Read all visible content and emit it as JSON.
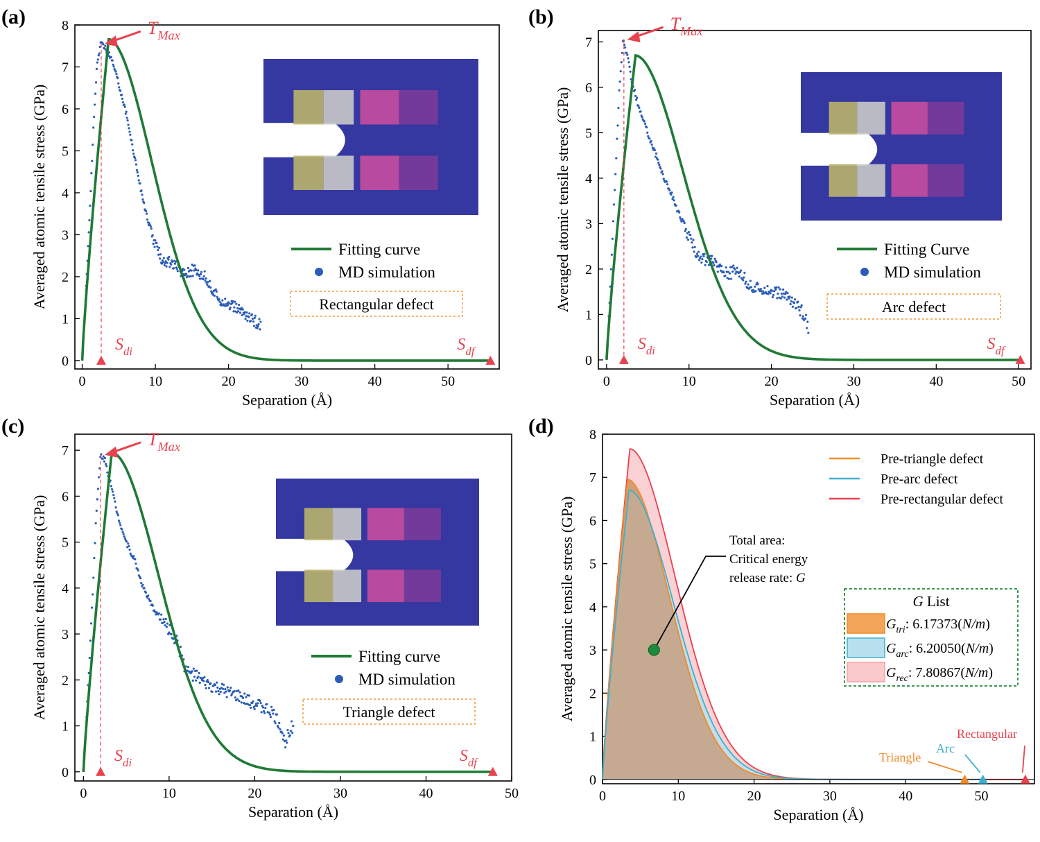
{
  "figure": {
    "colors": {
      "fit": "#1f7a35",
      "md": "#2a5cb8",
      "marker": "#e8424f",
      "tri": "#f08a2a",
      "arc": "#3fb0cc",
      "rec": "#e8424f",
      "frame": "#000000",
      "note": "#f29a3a",
      "glist": "#1f8a3a",
      "insetBlue": "#3438a0",
      "insetYellow": "#b9b46a",
      "insetGray": "#c9c9c9",
      "insetPink": "#c64c9e",
      "insetPurple": "#7a3a9a"
    }
  },
  "chart_data": [
    {
      "panel": "(a)",
      "type": "line",
      "xlabel": "Separation (Å)",
      "ylabel": "Averaged atomic tensile stress (GPa)",
      "xlim": [
        -1,
        57
      ],
      "ylim": [
        -0.2,
        8
      ],
      "xticks": [
        0,
        10,
        20,
        30,
        40,
        50
      ],
      "yticks": [
        0,
        1,
        2,
        3,
        4,
        5,
        6,
        7,
        8
      ],
      "legend": [
        "Fitting curve",
        "MD simulation"
      ],
      "note": "Rectangular defect",
      "fit": {
        "peak_x": 3.6,
        "peak_y": 7.66,
        "end_x": 55.8,
        "rise_power": 0.85,
        "decay_k": 8.7,
        "decay_p": 1.9
      },
      "md": {
        "points": [
          [
            0,
            0
          ],
          [
            0.5,
            1.6
          ],
          [
            1,
            3.4
          ],
          [
            1.5,
            5.4
          ],
          [
            2,
            7.0
          ],
          [
            2.5,
            7.55
          ],
          [
            3,
            7.5
          ],
          [
            4,
            7.2
          ],
          [
            5,
            6.6
          ],
          [
            6,
            5.9
          ],
          [
            7,
            5.0
          ],
          [
            8,
            4.1
          ],
          [
            9,
            3.3
          ],
          [
            10,
            2.75
          ],
          [
            11,
            2.4
          ],
          [
            12,
            2.35
          ],
          [
            13,
            2.2
          ],
          [
            14,
            2.1
          ],
          [
            15,
            2.15
          ],
          [
            16,
            2.1
          ],
          [
            17,
            1.95
          ],
          [
            18,
            1.6
          ],
          [
            19,
            1.45
          ],
          [
            20,
            1.35
          ],
          [
            21,
            1.25
          ],
          [
            22,
            1.15
          ],
          [
            23,
            1.0
          ],
          [
            24,
            0.9
          ],
          [
            24.4,
            0.85
          ]
        ]
      },
      "tmax": {
        "label": "T",
        "sub": "Max"
      },
      "sdi": {
        "label": "S",
        "sub": "di",
        "x": 2.6
      },
      "sdf": {
        "label": "S",
        "sub": "df",
        "x": 55.8
      }
    },
    {
      "panel": "(b)",
      "type": "line",
      "xlabel": "Separation (Å)",
      "ylabel": "Averaged atomic tensile stress (GPa)",
      "xlim": [
        -1,
        51.5
      ],
      "ylim": [
        -0.2,
        7.25
      ],
      "xticks": [
        0,
        10,
        20,
        30,
        40,
        50
      ],
      "yticks": [
        0,
        1,
        2,
        3,
        4,
        5,
        6,
        7
      ],
      "legend": [
        "Fitting Curve",
        "MD simulation"
      ],
      "note": "Arc defect",
      "fit": {
        "peak_x": 3.5,
        "peak_y": 6.7,
        "end_x": 50.2,
        "rise_power": 0.85,
        "decay_k": 8.5,
        "decay_p": 1.9
      },
      "md": {
        "points": [
          [
            0,
            0
          ],
          [
            0.5,
            1.8
          ],
          [
            1,
            3.8
          ],
          [
            1.5,
            5.8
          ],
          [
            2,
            7.05
          ],
          [
            2.5,
            6.7
          ],
          [
            3,
            6.2
          ],
          [
            4,
            5.5
          ],
          [
            5,
            5.0
          ],
          [
            6,
            4.5
          ],
          [
            7,
            4.0
          ],
          [
            8,
            3.6
          ],
          [
            9,
            3.1
          ],
          [
            10,
            2.7
          ],
          [
            11,
            2.35
          ],
          [
            12,
            2.2
          ],
          [
            13,
            2.15
          ],
          [
            14,
            2.0
          ],
          [
            15,
            1.9
          ],
          [
            16,
            2.0
          ],
          [
            17,
            1.7
          ],
          [
            18,
            1.55
          ],
          [
            19,
            1.6
          ],
          [
            20,
            1.5
          ],
          [
            21,
            1.45
          ],
          [
            22,
            1.4
          ],
          [
            23,
            1.2
          ],
          [
            24,
            1.0
          ],
          [
            24.5,
            0.7
          ]
        ]
      },
      "tmax": {
        "label": "T",
        "sub": "Max"
      },
      "sdi": {
        "label": "S",
        "sub": "di",
        "x": 2.1
      },
      "sdf": {
        "label": "S",
        "sub": "df",
        "x": 50.2
      }
    },
    {
      "panel": "(c)",
      "type": "line",
      "xlabel": "Separation (Å)",
      "ylabel": "Averaged atomic tensile stress (GPa)",
      "xlim": [
        -1,
        50
      ],
      "ylim": [
        -0.2,
        7.35
      ],
      "xticks": [
        0,
        10,
        20,
        30,
        40,
        50
      ],
      "yticks": [
        0,
        1,
        2,
        3,
        4,
        5,
        6,
        7
      ],
      "legend": [
        "Fitting curve",
        "MD simulation"
      ],
      "note": "Triangle defect",
      "fit": {
        "peak_x": 3.3,
        "peak_y": 6.95,
        "end_x": 47.8,
        "rise_power": 0.85,
        "decay_k": 8.0,
        "decay_p": 1.9
      },
      "md": {
        "points": [
          [
            0,
            0
          ],
          [
            0.5,
            1.7
          ],
          [
            1,
            3.6
          ],
          [
            1.5,
            5.6
          ],
          [
            2,
            6.9
          ],
          [
            2.5,
            6.8
          ],
          [
            3,
            6.4
          ],
          [
            4,
            5.6
          ],
          [
            5,
            5.0
          ],
          [
            6,
            4.6
          ],
          [
            7,
            4.0
          ],
          [
            8,
            3.6
          ],
          [
            9,
            3.35
          ],
          [
            10,
            3.1
          ],
          [
            11,
            2.8
          ],
          [
            12,
            2.2
          ],
          [
            13,
            2.1
          ],
          [
            14,
            1.95
          ],
          [
            15,
            1.85
          ],
          [
            16,
            1.8
          ],
          [
            17,
            1.7
          ],
          [
            18,
            1.65
          ],
          [
            19,
            1.55
          ],
          [
            20,
            1.5
          ],
          [
            21,
            1.4
          ],
          [
            22,
            1.3
          ],
          [
            23,
            1.0
          ],
          [
            23.5,
            0.6
          ],
          [
            24,
            0.9
          ],
          [
            24.5,
            1.0
          ]
        ]
      },
      "tmax": {
        "label": "T",
        "sub": "Max"
      },
      "sdi": {
        "label": "S",
        "sub": "di",
        "x": 2.0
      },
      "sdf": {
        "label": "S",
        "sub": "df",
        "x": 47.8
      }
    },
    {
      "panel": "(d)",
      "type": "area",
      "xlabel": "Separation (Å)",
      "ylabel": "Averaged atomic tensile stress (GPa)",
      "xlim": [
        0,
        57
      ],
      "ylim": [
        -0.1,
        8
      ],
      "xticks": [
        0,
        10,
        20,
        30,
        40,
        50
      ],
      "yticks": [
        0,
        1,
        2,
        3,
        4,
        5,
        6,
        7,
        8
      ],
      "legend": [
        "Pre-triangle defect",
        "Pre-arc defect",
        "Pre-rectangular defect"
      ],
      "series": [
        {
          "name": "Pre-rectangular defect",
          "key": "rec",
          "peak_x": 3.6,
          "peak_y": 7.66,
          "end_x": 55.8,
          "rise_power": 0.85,
          "decay_k": 8.7,
          "decay_p": 1.9
        },
        {
          "name": "Pre-triangle defect",
          "key": "tri",
          "peak_x": 3.3,
          "peak_y": 6.95,
          "end_x": 47.8,
          "rise_power": 0.85,
          "decay_k": 8.0,
          "decay_p": 1.9
        },
        {
          "name": "Pre-arc defect",
          "key": "arc",
          "peak_x": 3.5,
          "peak_y": 6.7,
          "end_x": 50.2,
          "rise_power": 0.85,
          "decay_k": 8.5,
          "decay_p": 1.9
        }
      ],
      "annotation": {
        "lines": [
          "Total area:",
          "Critical energy",
          "release rate: G"
        ],
        "point": [
          6.8,
          3.0
        ]
      },
      "glist": {
        "title": "G List",
        "entries": [
          {
            "sym": "G",
            "sub": "tri",
            "text": ": 6.17373(",
            "unit": "N/m",
            "close": ")"
          },
          {
            "sym": "G",
            "sub": "arc",
            "text": ": 6.20050(",
            "unit": "N/m",
            "close": ")"
          },
          {
            "sym": "G",
            "sub": "rec",
            "text": ": 7.80867(",
            "unit": "N/m",
            "close": ")"
          }
        ]
      },
      "endpoints": [
        {
          "label": "Triangle",
          "x": 47.8,
          "key": "tri"
        },
        {
          "label": "Arc",
          "x": 50.2,
          "key": "arc"
        },
        {
          "label": "Rectangular",
          "x": 55.8,
          "key": "rec"
        }
      ]
    }
  ]
}
